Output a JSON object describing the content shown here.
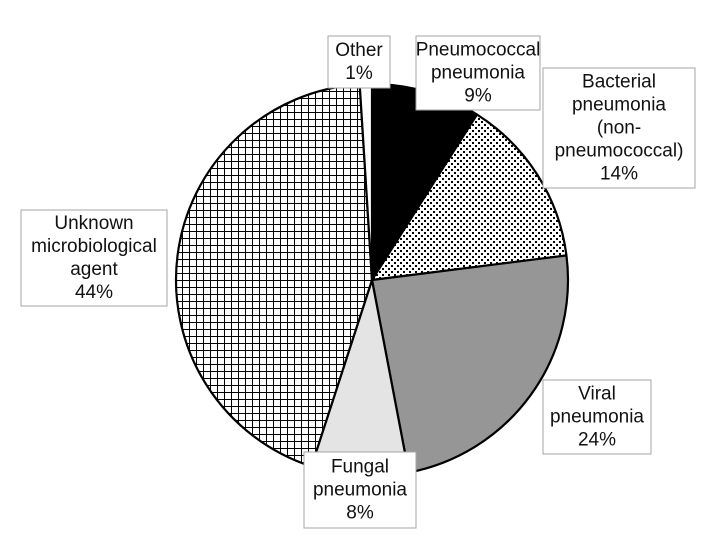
{
  "chart_data": {
    "type": "pie",
    "title": "",
    "start_angle_deg": 0,
    "direction": "clockwise",
    "slices": [
      {
        "name": "Pneumococcal pneumonia",
        "label_lines": [
          "Pneumococcal",
          "pneumonia",
          "9%"
        ],
        "value": 9,
        "fill": "#000000",
        "pattern": "solid"
      },
      {
        "name": "Bacterial pneumonia (non-pneumococcal)",
        "label_lines": [
          "Bacterial",
          "pneumonia",
          "(non-",
          "pneumococcal)",
          "14%"
        ],
        "value": 14,
        "fill": "#ffffff",
        "pattern": "dots"
      },
      {
        "name": "Viral pneumonia",
        "label_lines": [
          "Viral",
          "pneumonia",
          "24%"
        ],
        "value": 24,
        "fill": "#969696",
        "pattern": "solid"
      },
      {
        "name": "Fungal pneumonia",
        "label_lines": [
          "Fungal",
          "pneumonia",
          "8%"
        ],
        "value": 8,
        "fill": "#e4e4e4",
        "pattern": "solid"
      },
      {
        "name": "Unknown microbiological agent",
        "label_lines": [
          "Unknown",
          "microbiological",
          "agent",
          "44%"
        ],
        "value": 44,
        "fill": "#ffffff",
        "pattern": "grid"
      },
      {
        "name": "Other",
        "label_lines": [
          "Other",
          "1%"
        ],
        "value": 1,
        "fill": "#ffffff",
        "pattern": "solid"
      }
    ]
  }
}
